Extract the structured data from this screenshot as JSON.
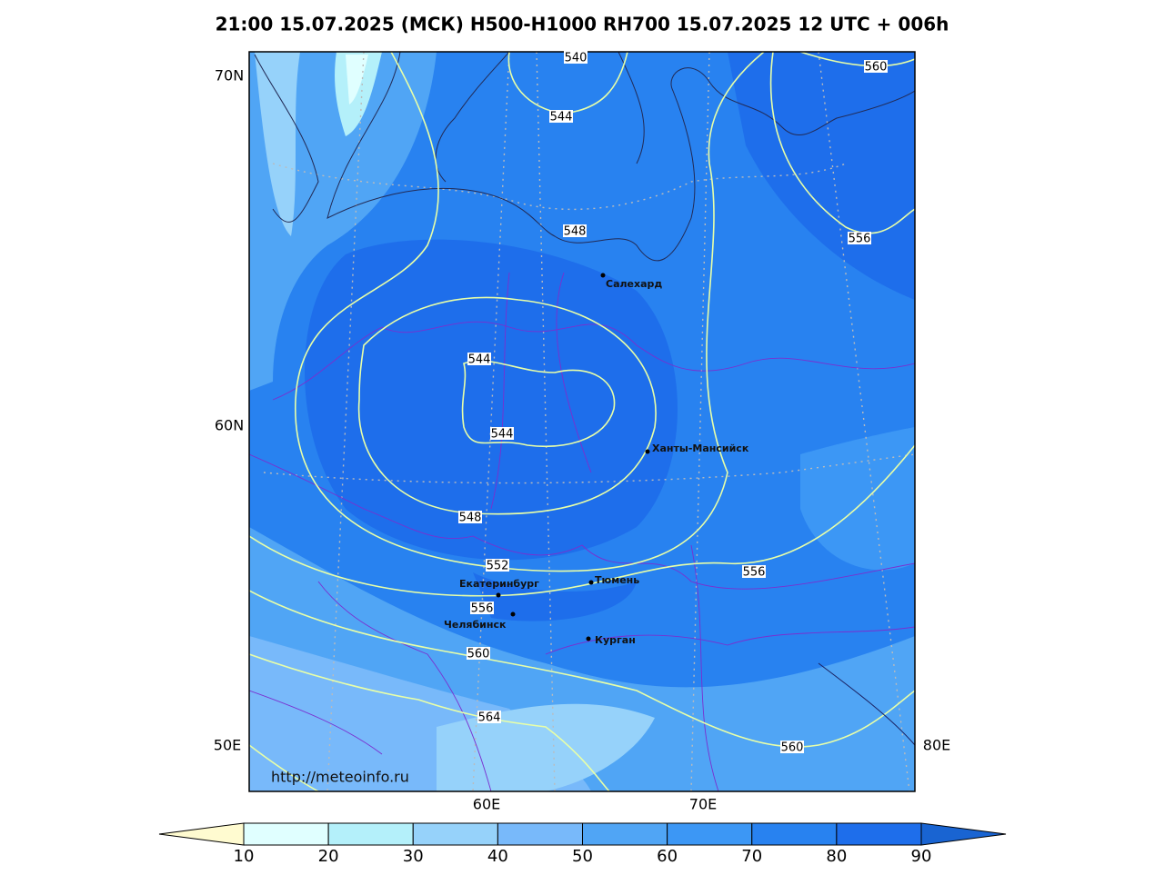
{
  "title": "21:00 15.07.2025 (МСК) H500-H1000 RH700 15.07.2025 12 UTC + 006h",
  "grid_labels": [
    "70N",
    "60N",
    "50E",
    "80E",
    "60E",
    "70E"
  ],
  "contour_labels": [
    "540",
    "544",
    "560",
    "548",
    "556",
    "544",
    "544",
    "548",
    "552",
    "556",
    "556",
    "560",
    "564",
    "560"
  ],
  "cities": [
    "Салехард",
    "Ханты-Мансийск",
    "Екатеринбург",
    "Тюмень",
    "Челябинск",
    "Курган"
  ],
  "credit": "http://meteoinfo.ru",
  "colorbar": {
    "ticks": [
      10,
      20,
      30,
      40,
      50,
      60,
      70,
      80,
      90
    ],
    "colors": [
      "#fffbd0",
      "#e0ffff",
      "#b4f0fa",
      "#96d2fa",
      "#78b9fa",
      "#50a5f5",
      "#3c97f5",
      "#2882f0",
      "#1e6eeb",
      "#1964d2"
    ]
  }
}
